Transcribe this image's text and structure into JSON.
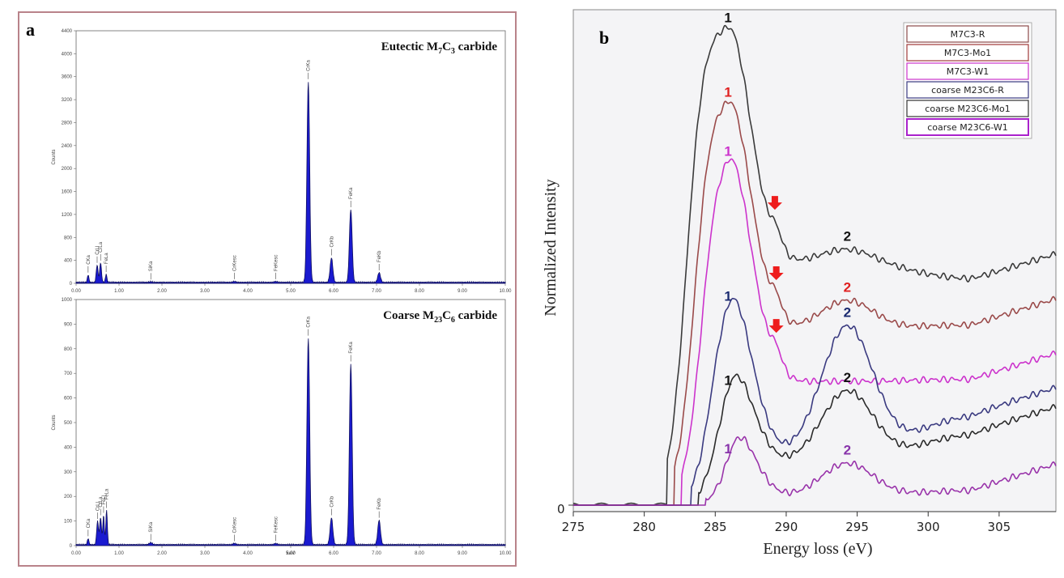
{
  "panel_a": {
    "label": "a",
    "charts": [
      {
        "title_main": "Eutectic M",
        "title_sub1": "7",
        "title_mid": "C",
        "title_sub2": "3",
        "title_end": " carbide",
        "ylabel": "Counts",
        "xlabel": "",
        "xlim": [
          0,
          10
        ],
        "ylim": [
          0,
          4400
        ],
        "yticks": [
          "0",
          "400",
          "800",
          "1200",
          "1600",
          "2000",
          "2400",
          "2800",
          "3200",
          "3600",
          "4000",
          "4400"
        ],
        "yvals": [
          0,
          400,
          800,
          1200,
          1600,
          2000,
          2400,
          2800,
          3200,
          3600,
          4000,
          4400
        ],
        "xticks": [
          "0.00",
          "1.00",
          "2.00",
          "3.00",
          "4.00",
          "5.00",
          "6.00",
          "7.00",
          "8.00",
          "9.00",
          "10.00"
        ],
        "peaks": [
          {
            "x": 0.28,
            "h": 130,
            "w": 0.025,
            "label": "CKa"
          },
          {
            "x": 0.49,
            "h": 300,
            "w": 0.03,
            "label": "CrLl"
          },
          {
            "x": 0.57,
            "h": 340,
            "w": 0.03,
            "label": "CrLa"
          },
          {
            "x": 0.7,
            "h": 140,
            "w": 0.025,
            "label": "FeLa"
          },
          {
            "x": 1.74,
            "h": 10,
            "w": 0.05,
            "label": "SiKa"
          },
          {
            "x": 3.69,
            "h": 15,
            "w": 0.05,
            "label": "CrKesc"
          },
          {
            "x": 4.65,
            "h": 15,
            "w": 0.05,
            "label": "FeKesc"
          },
          {
            "x": 5.41,
            "h": 3500,
            "w": 0.045,
            "label": "CrKa"
          },
          {
            "x": 5.95,
            "h": 430,
            "w": 0.045,
            "label": "CrKb"
          },
          {
            "x": 6.4,
            "h": 1270,
            "w": 0.045,
            "label": "FeKa"
          },
          {
            "x": 7.06,
            "h": 170,
            "w": 0.045,
            "label": "FeKb"
          }
        ]
      },
      {
        "title_main": "Coarse M",
        "title_sub1": "23",
        "title_mid": "C",
        "title_sub2": "6",
        "title_end": " carbide",
        "ylabel": "Counts",
        "xlabel": "keV",
        "xlim": [
          0,
          10
        ],
        "ylim": [
          0,
          1000
        ],
        "yticks": [
          "0",
          "100",
          "200",
          "300",
          "400",
          "500",
          "600",
          "700",
          "800",
          "900",
          "1000"
        ],
        "yvals": [
          0,
          100,
          200,
          300,
          400,
          500,
          600,
          700,
          800,
          900,
          1000
        ],
        "xticks": [
          "0.00",
          "1.00",
          "2.00",
          "3.00",
          "4.00",
          "5.00",
          "6.00",
          "7.00",
          "8.00",
          "9.00",
          "10.00"
        ],
        "peaks": [
          {
            "x": 0.28,
            "h": 25,
            "w": 0.025,
            "label": "CKa"
          },
          {
            "x": 0.5,
            "h": 95,
            "w": 0.03,
            "label": "CrLl"
          },
          {
            "x": 0.57,
            "h": 110,
            "w": 0.03,
            "label": "CrLa"
          },
          {
            "x": 0.64,
            "h": 120,
            "w": 0.025,
            "label": "FeLl"
          },
          {
            "x": 0.71,
            "h": 140,
            "w": 0.025,
            "label": "FeLa"
          },
          {
            "x": 1.74,
            "h": 8,
            "w": 0.05,
            "label": "SiKa"
          },
          {
            "x": 3.69,
            "h": 5,
            "w": 0.05,
            "label": "CrKesc"
          },
          {
            "x": 4.65,
            "h": 5,
            "w": 0.05,
            "label": "FeKesc"
          },
          {
            "x": 5.41,
            "h": 840,
            "w": 0.045,
            "label": "CrKa"
          },
          {
            "x": 5.95,
            "h": 110,
            "w": 0.045,
            "label": "CrKb"
          },
          {
            "x": 6.4,
            "h": 735,
            "w": 0.045,
            "label": "FeKa"
          },
          {
            "x": 7.06,
            "h": 100,
            "w": 0.045,
            "label": "FeKb"
          }
        ]
      }
    ]
  },
  "chart_data": {
    "type": "line",
    "panel_label": "b",
    "xlabel": "Energy loss (eV)",
    "ylabel": "Normalized Intensity",
    "xlim": [
      275,
      309
    ],
    "xticks": [
      275,
      280,
      285,
      290,
      295,
      300,
      305
    ],
    "ytick_label": "0",
    "grid": false,
    "legend_placement": "top-right",
    "series": [
      {
        "name": "M7C3-R",
        "color": "#3a3a3a",
        "legend_color": "#8b4a4a",
        "label_color": "#111111",
        "onset": 281.6,
        "offset": 0.58,
        "peak1": 1.0,
        "shoulder": 0.5,
        "peak2": 0.53,
        "tail": 0.43,
        "dip": true
      },
      {
        "name": "M7C3-Mo1",
        "color": "#9a4a4a",
        "legend_color": "#a03a3a",
        "label_color": "#e02020",
        "onset": 282.1,
        "offset": 0.42,
        "peak1": 0.86,
        "shoulder": 0.37,
        "peak2": 0.43,
        "tail": 0.39,
        "dip": true
      },
      {
        "name": "M7C3-W1",
        "color": "#cc33cc",
        "legend_color": "#cc33cc",
        "label_color": "#cc33cc",
        "onset": 282.6,
        "offset": 0.33,
        "peak1": 0.75,
        "shoulder": 0.26,
        "peak2": 0.26,
        "tail": 0.27,
        "dip": true
      },
      {
        "name": "coarse M23C6-R",
        "color": "#3a3a80",
        "legend_color": "#3a3a80",
        "label_color": "#1a2a70",
        "onset": 283.3,
        "offset": 0.24,
        "peak1": 0.49,
        "shoulder": 0.12,
        "peak2": 0.39,
        "tail": 0.3,
        "dip": false
      },
      {
        "name": "coarse M23C6-Mo1",
        "color": "#2a2a2a",
        "legend_color": "#333333",
        "label_color": "#111111",
        "onset": 283.8,
        "offset": 0.16,
        "peak1": 0.33,
        "shoulder": 0.1,
        "peak2": 0.25,
        "tail": 0.23,
        "dip": false
      },
      {
        "name": "coarse M23C6-W1",
        "color": "#9933aa",
        "legend_color": "#aa22cc",
        "label_color": "#8833aa",
        "onset": 284.3,
        "offset": 0.0,
        "peak1": 0.2,
        "shoulder": 0.02,
        "peak2": 0.09,
        "tail": 0.05,
        "dip": false
      }
    ],
    "peak_labels": [
      {
        "series": 0,
        "l1": "1",
        "l2": "2"
      },
      {
        "series": 1,
        "l1": "1",
        "l2": "2"
      },
      {
        "series": 2,
        "l1": "1",
        "l2": ""
      },
      {
        "series": 3,
        "l1": "1",
        "l2": "2"
      },
      {
        "series": 4,
        "l1": "1",
        "l2": "2"
      },
      {
        "series": 5,
        "l1": "1",
        "l2": "2"
      }
    ],
    "arrow_positions": [
      {
        "x": 289.2,
        "series": 0
      },
      {
        "x": 289.3,
        "series": 1
      },
      {
        "x": 289.3,
        "series": 2
      }
    ]
  }
}
